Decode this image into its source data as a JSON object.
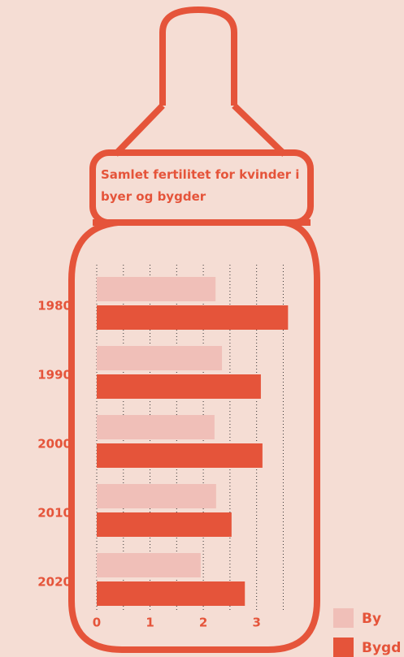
{
  "chart_data": {
    "type": "bar",
    "orientation": "horizontal",
    "title": "Samlet fertilitet for kvinder i byer og bygder",
    "categories": [
      "1980",
      "1990",
      "2000",
      "2010",
      "2020"
    ],
    "series": [
      {
        "name": "By",
        "color": "#f0bfb8",
        "values": [
          2.23,
          2.35,
          2.21,
          2.24,
          1.95
        ]
      },
      {
        "name": "Bygd",
        "color": "#e5543a",
        "values": [
          3.59,
          3.08,
          3.11,
          2.53,
          2.78
        ]
      }
    ],
    "xlim": [
      0,
      3.6
    ],
    "xticks": [
      0,
      1,
      2,
      3
    ],
    "xminorticks": [
      0.5,
      1.5,
      2.5,
      3.5
    ],
    "grid": true
  }
}
